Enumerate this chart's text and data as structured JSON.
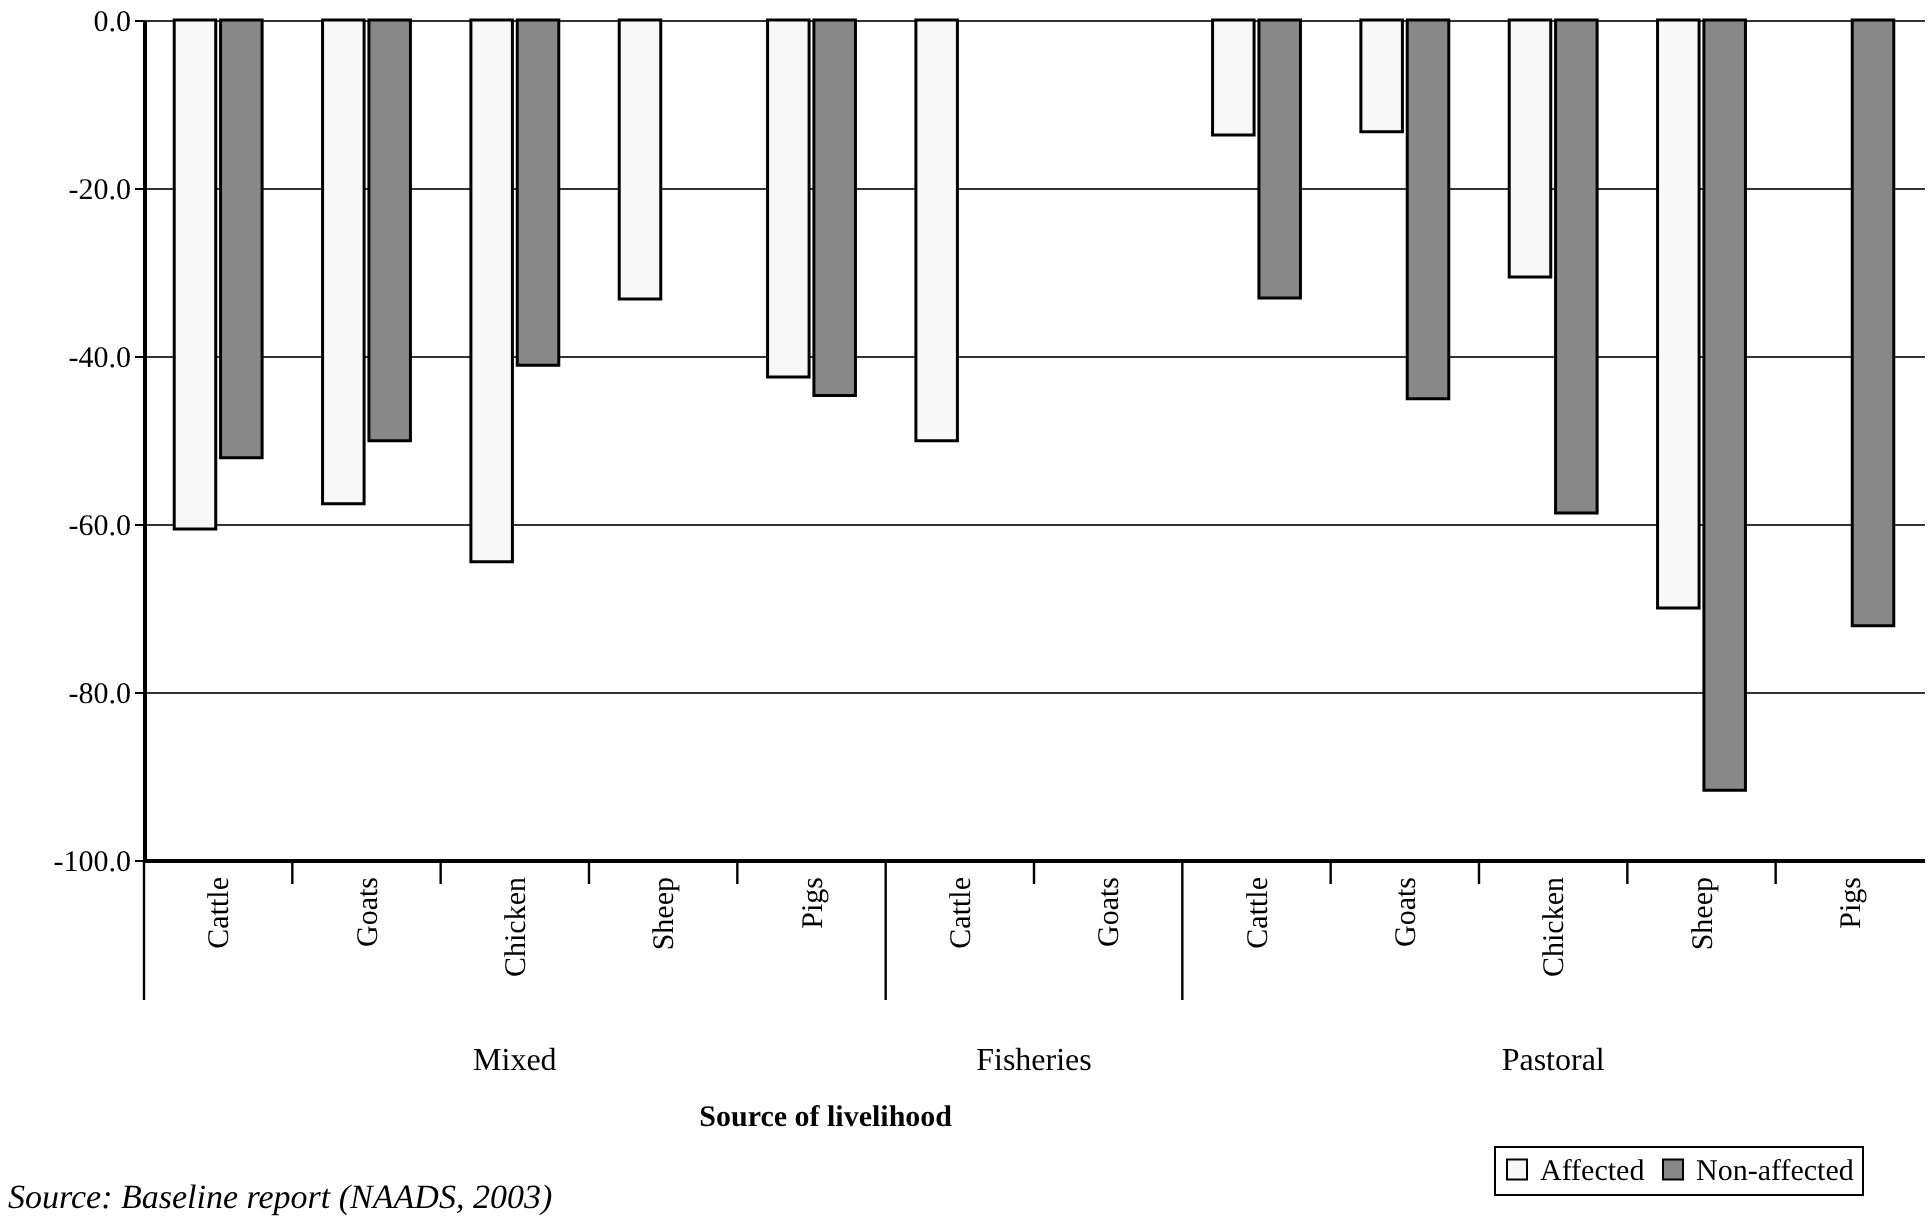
{
  "chart_data": {
    "type": "bar",
    "xlabel": "Source of livelihood",
    "categories": [
      "Cattle",
      "Goats",
      "Chicken",
      "Sheep",
      "Pigs",
      "Cattle",
      "Goats",
      "Cattle",
      "Goats",
      "Chicken",
      "Sheep",
      "Pigs"
    ],
    "series": [
      {
        "name": "Affected",
        "color": "#f8f8f8",
        "values": [
          -60.6,
          -57.6,
          -64.5,
          -33.2,
          -42.5,
          -50.1,
          null,
          -13.7,
          -13.3,
          -30.6,
          -70.0,
          null
        ]
      },
      {
        "name": "Non-affected",
        "color": "#888888",
        "values": [
          -52.1,
          -50.1,
          -41.1,
          null,
          -44.7,
          null,
          null,
          -33.1,
          -45.1,
          -58.7,
          -91.7,
          -72.1
        ]
      }
    ],
    "ylim": [
      -100,
      0
    ],
    "yticks": [
      {
        "value": 0,
        "label": "0.0"
      },
      {
        "value": -20,
        "label": "-20.0"
      },
      {
        "value": -40,
        "label": "-40.0"
      },
      {
        "value": -60,
        "label": "-60.0"
      },
      {
        "value": -80,
        "label": "-80.0"
      },
      {
        "value": -100,
        "label": "-100.0"
      }
    ],
    "grid": "y",
    "legend": "bottom right",
    "annotations": [
      "Mixed",
      "Fisheries",
      "Pastoral",
      "Source: Baseline report (NAADS, 2003)"
    ]
  }
}
